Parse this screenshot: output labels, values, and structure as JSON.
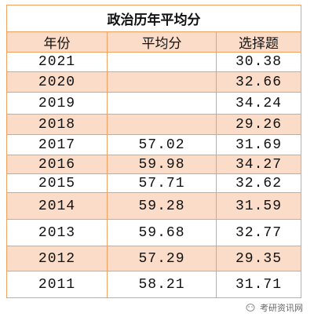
{
  "table": {
    "title": "政治历年平均分",
    "header": [
      "年份",
      "平均分",
      "选择题"
    ],
    "rows": [
      [
        "2021",
        null,
        "30.38"
      ],
      [
        "2020",
        null,
        "32.66"
      ],
      [
        "2019",
        null,
        "34.24"
      ],
      [
        "2018",
        null,
        "29.26"
      ],
      [
        "2017",
        "57.02",
        "31.69"
      ],
      [
        "2016",
        "59.98",
        "34.27"
      ],
      [
        "2015",
        "57.71",
        "32.62"
      ],
      [
        "2014",
        "59.28",
        "31.59"
      ],
      [
        "2013",
        "59.68",
        "32.77"
      ],
      [
        "2012",
        "57.29",
        "29.35"
      ],
      [
        "2011",
        "58.21",
        "31.71"
      ]
    ]
  },
  "watermark": "考研资讯网"
}
